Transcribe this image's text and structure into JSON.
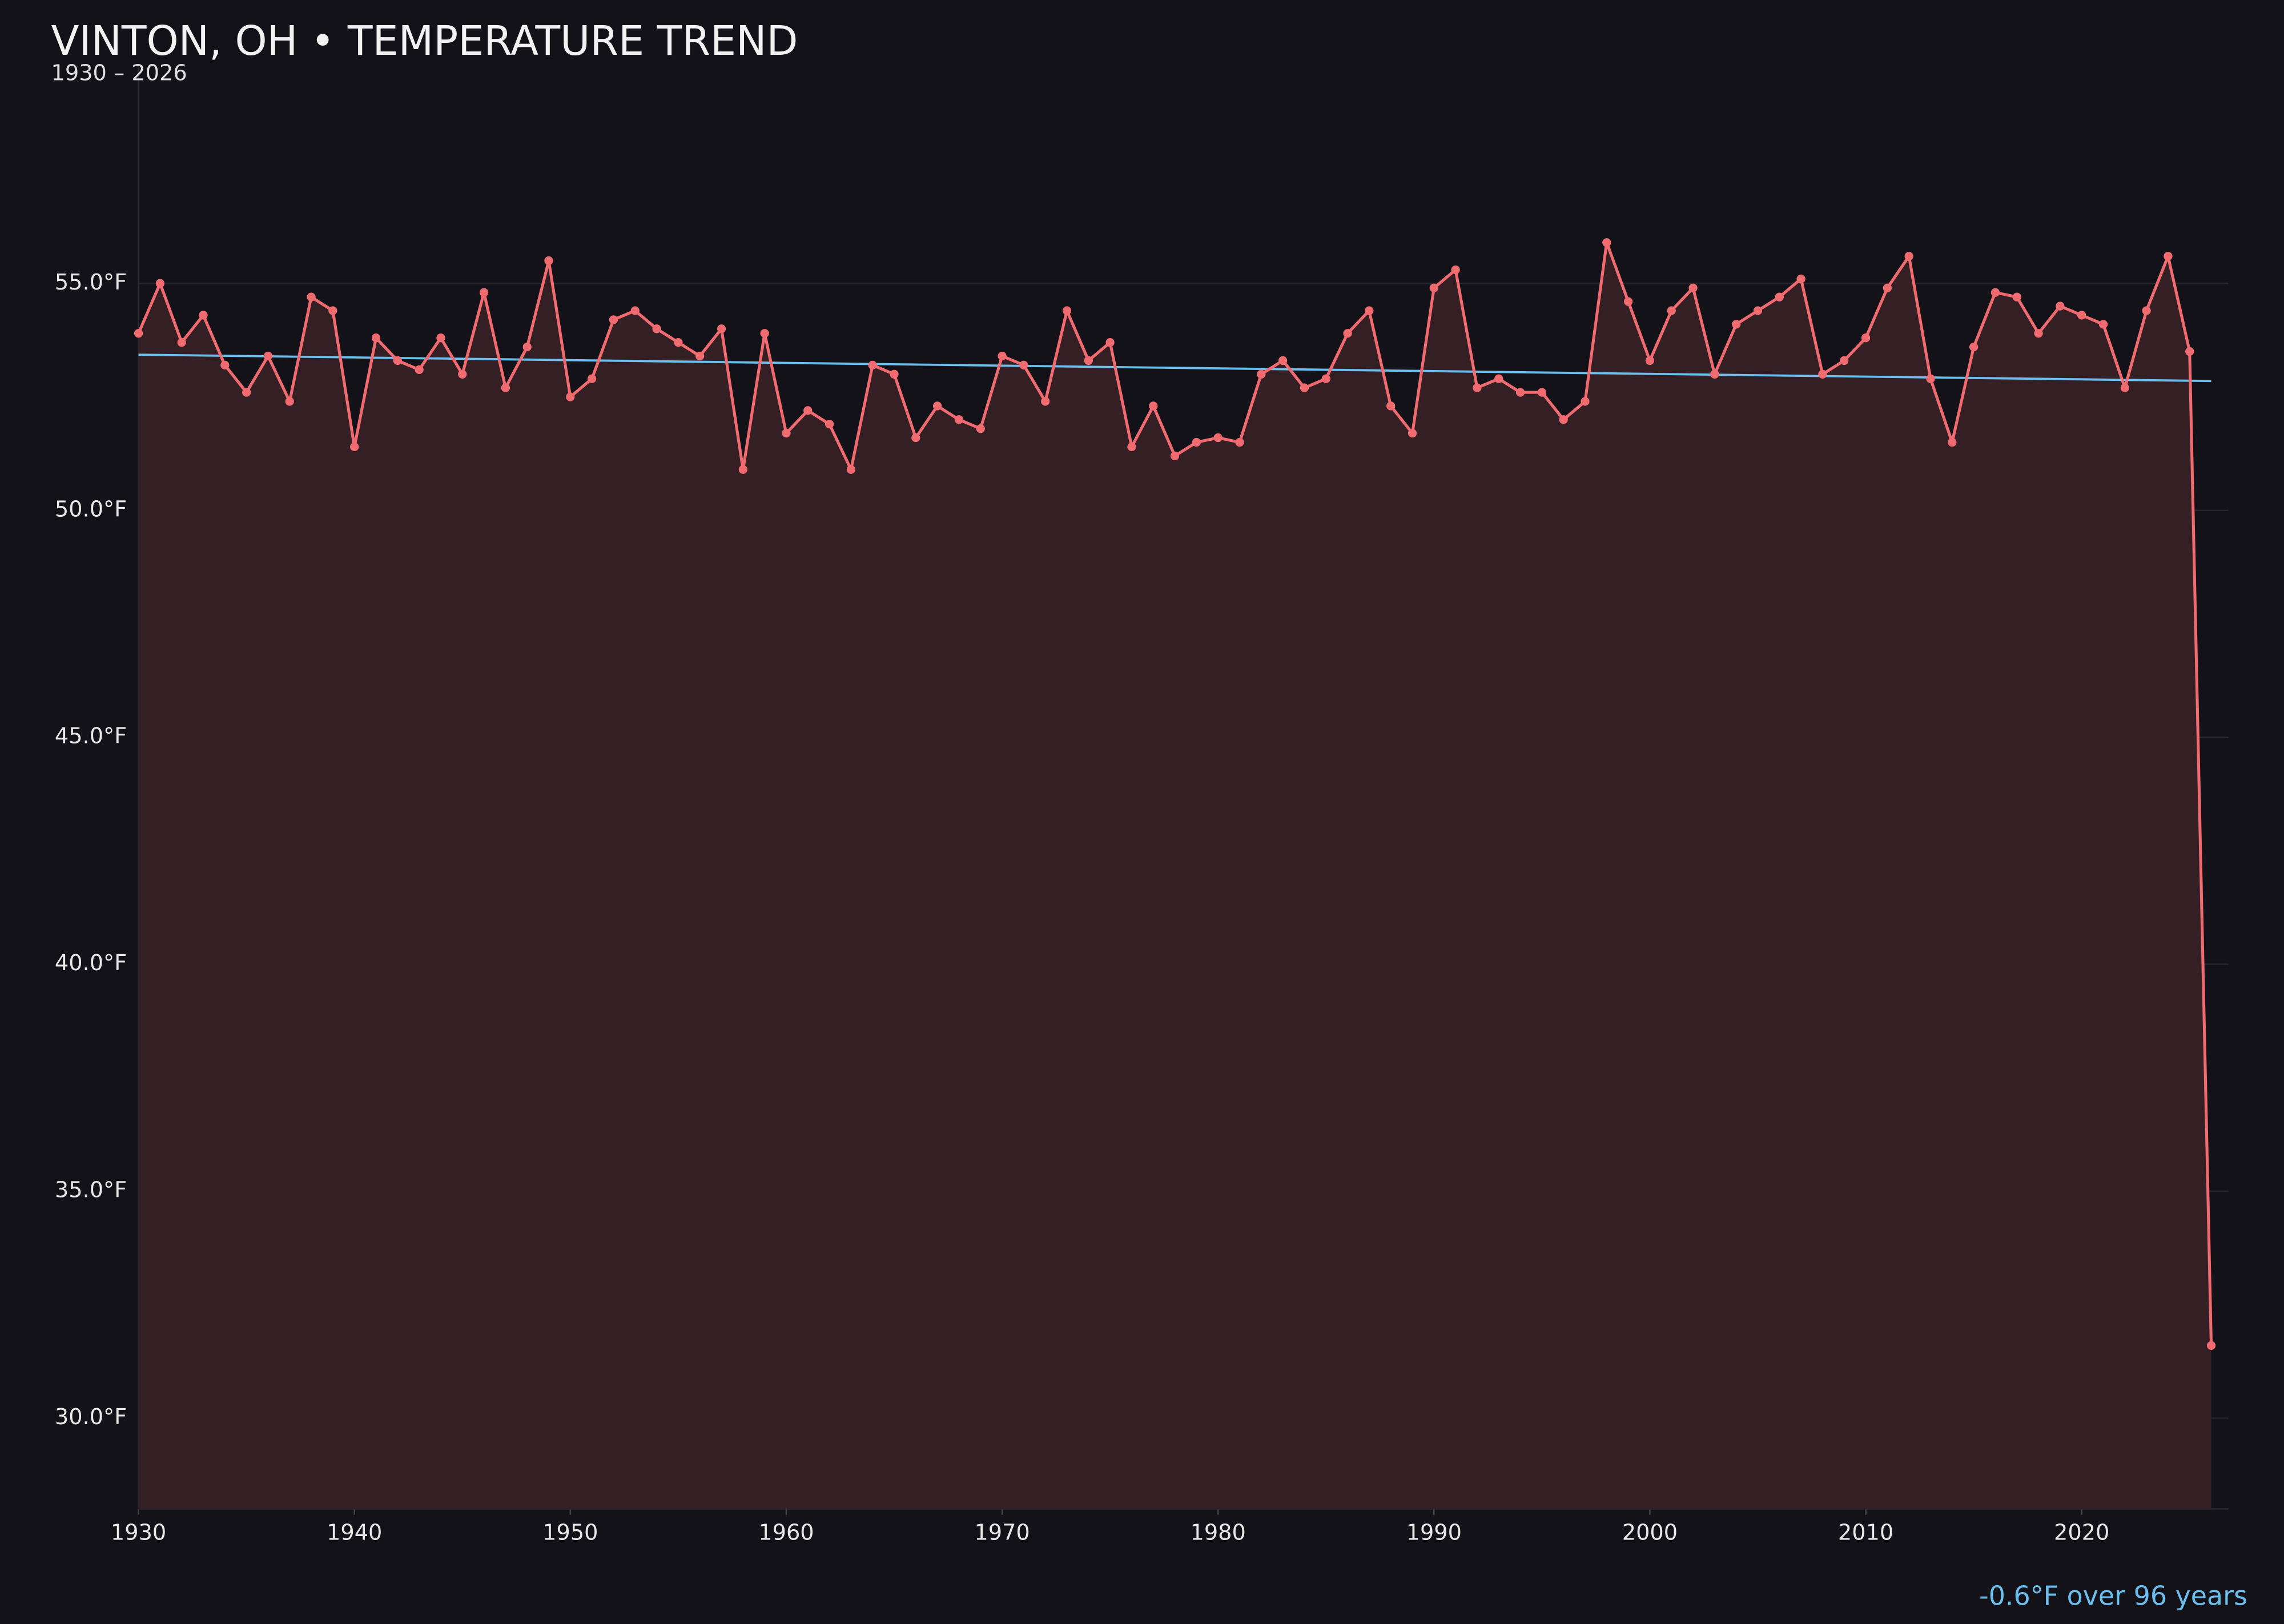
{
  "chart_data": {
    "type": "line",
    "title": "VINTON, OH • TEMPERATURE TREND",
    "subtitle": "1930 – 2026",
    "x": [
      1930,
      1931,
      1932,
      1933,
      1934,
      1935,
      1936,
      1937,
      1938,
      1939,
      1940,
      1941,
      1942,
      1943,
      1944,
      1945,
      1946,
      1947,
      1948,
      1949,
      1950,
      1951,
      1952,
      1953,
      1954,
      1955,
      1956,
      1957,
      1958,
      1959,
      1960,
      1961,
      1962,
      1963,
      1964,
      1965,
      1966,
      1967,
      1968,
      1969,
      1970,
      1971,
      1972,
      1973,
      1974,
      1975,
      1976,
      1977,
      1978,
      1979,
      1980,
      1981,
      1982,
      1983,
      1984,
      1985,
      1986,
      1987,
      1988,
      1989,
      1990,
      1991,
      1992,
      1993,
      1994,
      1995,
      1996,
      1997,
      1998,
      1999,
      2000,
      2001,
      2002,
      2003,
      2004,
      2005,
      2006,
      2007,
      2008,
      2009,
      2010,
      2011,
      2012,
      2013,
      2014,
      2015,
      2016,
      2017,
      2018,
      2019,
      2020,
      2021,
      2022,
      2023,
      2024,
      2025,
      2026
    ],
    "series": [
      {
        "color": "#f06b70",
        "fill": "#341f25",
        "values": [
          53.9,
          55.0,
          53.7,
          54.3,
          53.2,
          52.6,
          53.4,
          52.4,
          54.7,
          54.4,
          51.4,
          53.8,
          53.3,
          53.1,
          53.8,
          53.0,
          54.8,
          52.7,
          53.6,
          55.5,
          52.5,
          52.9,
          54.2,
          54.4,
          54.0,
          53.7,
          53.4,
          54.0,
          50.9,
          53.9,
          51.7,
          52.2,
          51.9,
          50.9,
          53.2,
          53.0,
          51.6,
          52.3,
          52.0,
          51.8,
          53.4,
          53.2,
          52.4,
          54.4,
          53.3,
          53.7,
          51.4,
          52.3,
          51.2,
          51.5,
          51.6,
          51.5,
          53.0,
          53.3,
          52.7,
          52.9,
          53.9,
          54.4,
          52.3,
          51.7,
          54.9,
          55.3,
          52.7,
          52.9,
          52.6,
          52.6,
          52.0,
          52.4,
          55.9,
          54.6,
          53.3,
          54.4,
          54.9,
          53.0,
          54.1,
          54.4,
          54.7,
          55.1,
          53.0,
          53.3,
          53.8,
          54.9,
          55.6,
          52.9,
          51.5,
          53.6,
          54.8,
          54.7,
          53.9,
          54.5,
          54.3,
          54.1,
          52.7,
          54.4,
          55.6,
          53.5,
          31.6
        ]
      }
    ],
    "trend": {
      "color": "#6cc0ef",
      "x": [
        1930,
        2026
      ],
      "values": [
        53.43,
        52.85
      ]
    },
    "annotation": "-0.6°F over 96 years",
    "xlim": [
      1930,
      2026.8
    ],
    "ylim": [
      28,
      59.8
    ],
    "xticks": [
      1930,
      1940,
      1950,
      1960,
      1970,
      1980,
      1990,
      2000,
      2010,
      2020
    ],
    "yticks": [
      {
        "value": 30,
        "label": "30.0°F"
      },
      {
        "value": 35,
        "label": "35.0°F"
      },
      {
        "value": 40,
        "label": "40.0°F"
      },
      {
        "value": 45,
        "label": "45.0°F"
      },
      {
        "value": 50,
        "label": "50.0°F"
      },
      {
        "value": 55,
        "label": "55.0°F"
      }
    ],
    "grid": true
  }
}
